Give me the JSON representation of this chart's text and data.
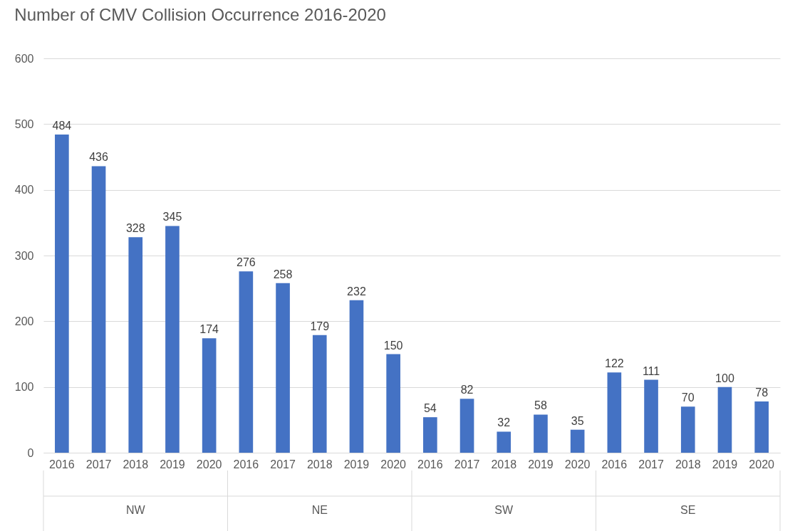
{
  "chart_data": {
    "type": "bar",
    "title": "Number of CMV Collision Occurrence 2016-2020",
    "categories": [
      "2016",
      "2017",
      "2018",
      "2019",
      "2020",
      "2016",
      "2017",
      "2018",
      "2019",
      "2020",
      "2016",
      "2017",
      "2018",
      "2019",
      "2020",
      "2016",
      "2017",
      "2018",
      "2019",
      "2020"
    ],
    "values": [
      484,
      436,
      328,
      345,
      174,
      276,
      258,
      179,
      232,
      150,
      54,
      82,
      32,
      58,
      35,
      122,
      111,
      70,
      100,
      78
    ],
    "color": "#4472c4",
    "ylim": [
      0,
      600
    ],
    "yticks": [
      0,
      100,
      200,
      300,
      400,
      500,
      600
    ],
    "grid": "y",
    "data_labels": true,
    "annotations": [
      "NW",
      "NE",
      "SW",
      "SE"
    ]
  }
}
